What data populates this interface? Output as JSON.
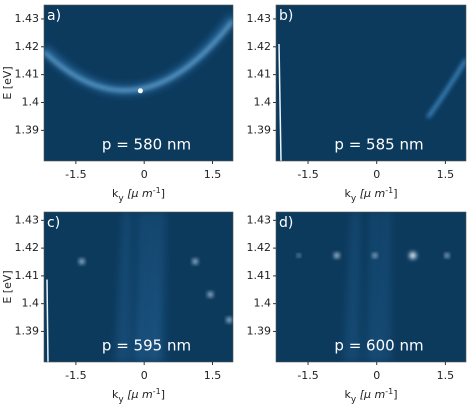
{
  "chart_data": [
    {
      "type": "image",
      "panel_label": "a)",
      "annotation": "p = 580 nm",
      "ylabel": "E [eV]",
      "xlabel": {
        "text": "k",
        "subscript": "y",
        "unit": " [μ m",
        "superscript": "-1",
        "unit_end": "]"
      },
      "xlim": [
        -2.2,
        1.95
      ],
      "ylim": [
        1.379,
        1.435
      ],
      "xticks": [
        -1.5,
        0,
        1.5
      ],
      "yticks": [
        1.39,
        1.4,
        1.41,
        1.42,
        1.43
      ]
    },
    {
      "type": "image",
      "panel_label": "b)",
      "annotation": "p = 585 nm",
      "xlabel": {
        "text": "k",
        "subscript": "y",
        "unit": " [μ m",
        "superscript": "-1",
        "unit_end": "]"
      },
      "xlim": [
        -2.2,
        1.95
      ],
      "ylim": [
        1.379,
        1.435
      ],
      "xticks": [
        -1.5,
        0,
        1.5
      ],
      "yticks": [
        1.39,
        1.4,
        1.41,
        1.42,
        1.43
      ]
    },
    {
      "type": "image",
      "panel_label": "c)",
      "annotation": "p = 595 nm",
      "ylabel": "E [eV]",
      "xlabel": {
        "text": "k",
        "subscript": "y",
        "unit": " [μ m",
        "superscript": "-1",
        "unit_end": "]"
      },
      "xlim": [
        -2.2,
        1.95
      ],
      "ylim": [
        1.379,
        1.433
      ],
      "xticks": [
        -1.5,
        0,
        1.5
      ],
      "yticks": [
        1.39,
        1.4,
        1.41,
        1.42,
        1.43
      ]
    },
    {
      "type": "image",
      "panel_label": "d)",
      "annotation": "p = 600 nm",
      "xlabel": {
        "text": "k",
        "subscript": "y",
        "unit": " [μ m",
        "superscript": "-1",
        "unit_end": "]"
      },
      "xlim": [
        -2.2,
        1.95
      ],
      "ylim": [
        1.379,
        1.433
      ],
      "xticks": [
        -1.5,
        0,
        1.5
      ],
      "yticks": [
        1.39,
        1.4,
        1.41,
        1.42,
        1.43
      ]
    }
  ]
}
